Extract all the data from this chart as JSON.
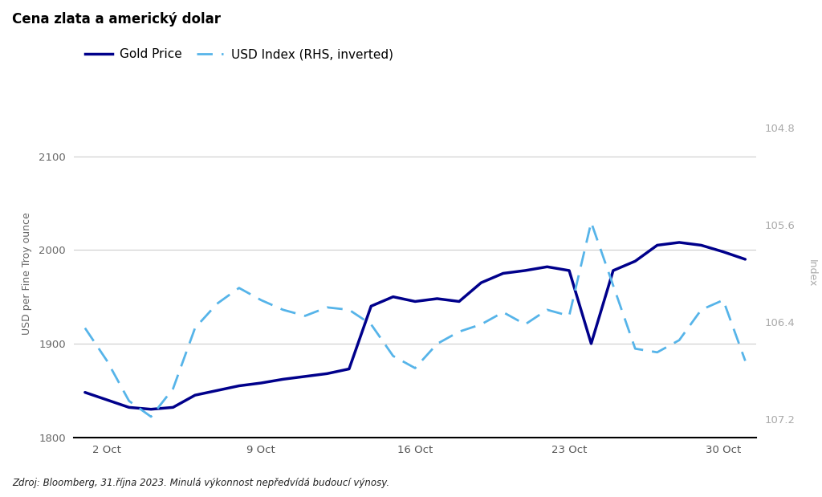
{
  "title": "Cena zlata a americký dolar",
  "footnote": "Zdroj: Bloomberg, 31.října 2023. Minulá výkonnost nepředvídá budoucí výnosy.",
  "legend": [
    "Gold Price",
    "USD Index (RHS, inverted)"
  ],
  "ylabel_left": "USD per Fine Troy ounce",
  "ylabel_right": "Index",
  "gold_dates": [
    0,
    1,
    2,
    3,
    4,
    5,
    6,
    7,
    8,
    9,
    10,
    11,
    12,
    13,
    14,
    15,
    16,
    17,
    18,
    19,
    20,
    21,
    22,
    23,
    24,
    25,
    26,
    27,
    28,
    29,
    30
  ],
  "gold_values": [
    1848,
    1840,
    1832,
    1830,
    1832,
    1845,
    1850,
    1855,
    1858,
    1862,
    1865,
    1868,
    1873,
    1940,
    1950,
    1945,
    1948,
    1945,
    1965,
    1975,
    1978,
    1982,
    1978,
    1900,
    1978,
    1988,
    2005,
    2008,
    2005,
    1998,
    1990
  ],
  "usd_dates": [
    0,
    1,
    2,
    3,
    4,
    5,
    6,
    7,
    8,
    9,
    10,
    11,
    12,
    13,
    14,
    15,
    16,
    17,
    18,
    19,
    20,
    21,
    22,
    23,
    24,
    25,
    26,
    27,
    28,
    29,
    30
  ],
  "usd_values": [
    106.45,
    106.72,
    107.05,
    107.18,
    106.95,
    106.45,
    106.25,
    106.12,
    106.22,
    106.3,
    106.35,
    106.28,
    106.3,
    106.42,
    106.68,
    106.78,
    106.58,
    106.48,
    106.42,
    106.32,
    106.42,
    106.3,
    106.35,
    105.58,
    106.1,
    106.62,
    106.65,
    106.55,
    106.3,
    106.22,
    106.72
  ],
  "gold_color": "#00008B",
  "usd_color": "#56B4E9",
  "ylim_gold": [
    1800,
    2150
  ],
  "ylim_usd_top": 107.35,
  "ylim_usd_bottom": 104.65,
  "yticks_gold": [
    1800,
    1900,
    2000,
    2100
  ],
  "yticks_usd": [
    104.8,
    105.6,
    106.4,
    107.2
  ],
  "xtick_positions": [
    1,
    8,
    15,
    22,
    29
  ],
  "xtick_labels": [
    "2 Oct",
    "9 Oct",
    "16 Oct",
    "23 Oct",
    "30 Oct"
  ],
  "background_color": "#ffffff",
  "grid_color": "#cccccc",
  "title_fontsize": 12,
  "axis_fontsize": 9,
  "tick_fontsize": 9.5
}
